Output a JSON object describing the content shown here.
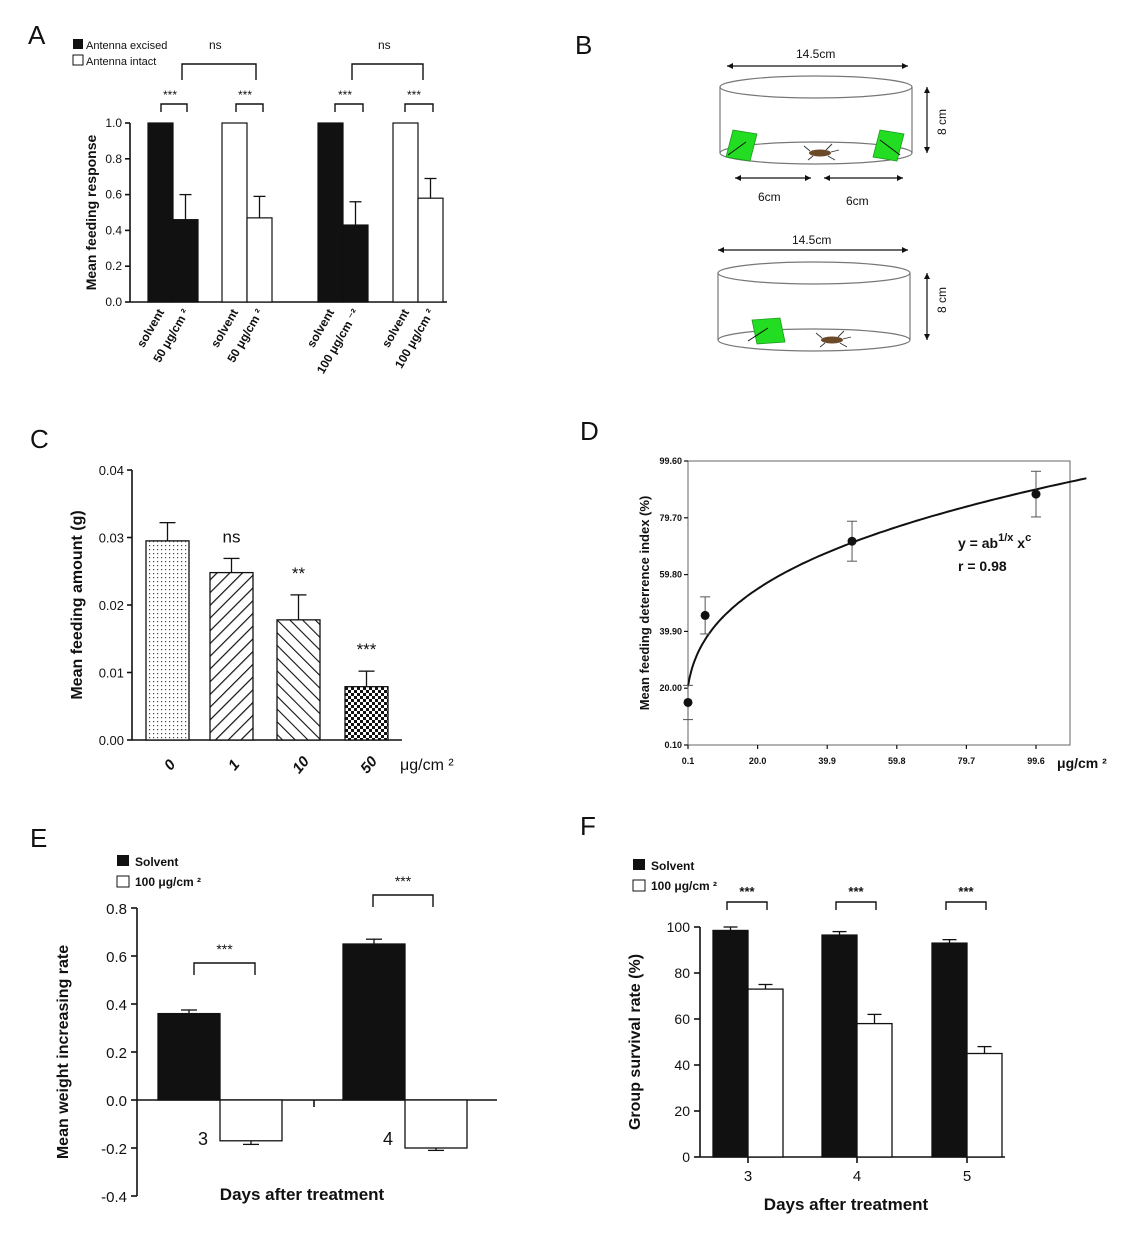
{
  "colors": {
    "black": "#111111",
    "white": "#ffffff",
    "green": "#22dd22"
  },
  "panel_labels": [
    "A",
    "B",
    "C",
    "D",
    "E",
    "F"
  ],
  "panel_a": {
    "legend": [
      {
        "label": "Antenna excised",
        "color": "#111111"
      },
      {
        "label": "Antenna intact",
        "color": "#ffffff"
      }
    ],
    "ns_label": "ns",
    "sig_label": "***"
  },
  "panel_b": {
    "dish_width": "14.5cm",
    "dish_height": "8 cm",
    "left_distance": "6cm",
    "right_distance": "6cm"
  },
  "panel_d_text": {
    "equation_main": "y = ab",
    "equation_exp": "1/x",
    "equation_x": " x",
    "equation_c": "c",
    "r_value": "r  = 0.98"
  },
  "panel_e_legend": [
    {
      "label": "Solvent",
      "color": "#111111"
    },
    {
      "label": "100 μg/cm ²",
      "color": "#ffffff"
    }
  ],
  "panel_f_legend": [
    {
      "label": "Solvent",
      "color": "#111111"
    },
    {
      "label": "100 μg/cm ²",
      "color": "#ffffff"
    }
  ],
  "chart_data": [
    {
      "panel": "A",
      "type": "bar",
      "ylabel": "Mean feeding response",
      "ylim": [
        0,
        1.0
      ],
      "yticks": [
        "0.0",
        "0.2",
        "0.4",
        "0.6",
        "0.8",
        "1.0"
      ],
      "bars": [
        {
          "label": "solvent",
          "value": 1.0,
          "err": 0,
          "fill": "black"
        },
        {
          "label": "50 μg/cm ²",
          "value": 0.46,
          "err": 0.14,
          "fill": "black"
        },
        {
          "label": "solvent",
          "value": 1.0,
          "err": 0,
          "fill": "white"
        },
        {
          "label": "50 μg/cm ²",
          "value": 0.47,
          "err": 0.12,
          "fill": "white"
        },
        {
          "label": "solvent",
          "value": 1.0,
          "err": 0,
          "fill": "black"
        },
        {
          "label": "100 μg/cm ⁻²",
          "value": 0.43,
          "err": 0.13,
          "fill": "black"
        },
        {
          "label": "solvent",
          "value": 1.0,
          "err": 0,
          "fill": "white"
        },
        {
          "label": "100 μg/cm ²",
          "value": 0.58,
          "err": 0.11,
          "fill": "white"
        }
      ]
    },
    {
      "panel": "C",
      "type": "bar",
      "ylabel": "Mean feeding amount (g)",
      "xlabel": "μg/cm ²",
      "ylim": [
        0,
        0.04
      ],
      "yticks": [
        "0.00",
        "0.01",
        "0.02",
        "0.03",
        "0.04"
      ],
      "categories": [
        "0",
        "1",
        "10",
        "50"
      ],
      "values": [
        0.0295,
        0.0248,
        0.0178,
        0.0079
      ],
      "errors": [
        0.0027,
        0.0021,
        0.0037,
        0.0023
      ],
      "annotations": [
        "",
        "ns",
        "**",
        "***"
      ]
    },
    {
      "panel": "D",
      "type": "scatter",
      "ylabel": "Mean feeding deterrence index (%)",
      "xlabel": "μg/cm ²",
      "xlim": [
        0.1,
        114
      ],
      "ylim": [
        0.1,
        99.6
      ],
      "xticks": [
        "0.1",
        "20.0",
        "39.9",
        "59.8",
        "79.7",
        "99.6"
      ],
      "yticks": [
        "0.10",
        "20.00",
        "39.90",
        "59.80",
        "79.70",
        "99.60"
      ],
      "x": [
        0.1,
        5,
        47,
        99.6
      ],
      "y": [
        15,
        45.5,
        71.5,
        88
      ],
      "errors": [
        6,
        6.5,
        7,
        8
      ],
      "fit": "y = ab^(1/x) x^c, r = 0.98"
    },
    {
      "panel": "E",
      "type": "bar",
      "ylabel": "Mean weight increasing rate",
      "xlabel": "Days after treatment",
      "ylim": [
        -0.4,
        0.8
      ],
      "yticks": [
        "-0.4",
        "-0.2",
        "0.0",
        "0.2",
        "0.4",
        "0.6",
        "0.8"
      ],
      "categories": [
        "3",
        "4"
      ],
      "series": [
        {
          "name": "Solvent",
          "values": [
            0.36,
            0.65
          ],
          "errors": [
            0.015,
            0.02
          ]
        },
        {
          "name": "100 μg/cm ²",
          "values": [
            -0.17,
            -0.2
          ],
          "errors": [
            0.015,
            0.01
          ]
        }
      ],
      "annotations": [
        "***",
        "***"
      ]
    },
    {
      "panel": "F",
      "type": "bar",
      "ylabel": "Group survival rate (%)",
      "xlabel": "Days after treatment",
      "ylim": [
        0,
        100
      ],
      "yticks": [
        "0",
        "20",
        "40",
        "60",
        "80",
        "100"
      ],
      "categories": [
        "3",
        "4",
        "5"
      ],
      "series": [
        {
          "name": "Solvent",
          "values": [
            98.5,
            96.5,
            93
          ],
          "errors": [
            1.5,
            1.5,
            1.5
          ]
        },
        {
          "name": "100 μg/cm ²",
          "values": [
            73,
            58,
            45
          ],
          "errors": [
            2,
            4,
            3
          ]
        }
      ],
      "annotations": [
        "***",
        "***",
        "***"
      ]
    }
  ]
}
